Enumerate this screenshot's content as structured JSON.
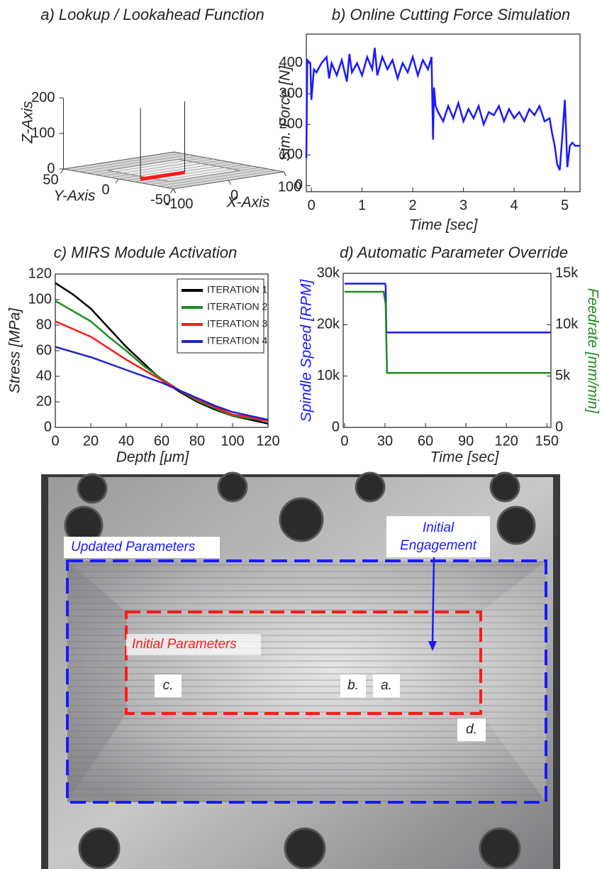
{
  "chart_data": [
    {
      "type": "surface3d",
      "title": "a) Lookup / Lookahead Function",
      "xlabel": "X-Axis",
      "ylabel": "Y-Axis",
      "zlabel": "Z-Axis",
      "xlim": [
        -100,
        100
      ],
      "ylim": [
        -50,
        50
      ],
      "zlim": [
        0,
        200
      ],
      "xticks": [
        -100,
        0,
        100
      ],
      "yticks": [
        -50,
        0,
        50
      ],
      "zticks": [
        0,
        100,
        200
      ],
      "toolpath": {
        "x": [
          -80,
          0
        ],
        "y": [
          -10,
          -10
        ],
        "z": [
          0,
          0
        ],
        "color": "#ff1a1a"
      }
    },
    {
      "type": "line",
      "title": "b) Online Cutting Force Simulation",
      "xlabel": "Time [sec]",
      "ylabel": "Sim. Force [N]",
      "xlim": [
        -0.1,
        5.3
      ],
      "ylim": [
        -20,
        495
      ],
      "xticks": [
        0,
        1,
        2,
        3,
        4,
        5
      ],
      "yticks": [
        0,
        100,
        200,
        300,
        400
      ],
      "color": "#1a1aff",
      "x": [
        -0.1,
        -0.08,
        -0.02,
        0.0,
        0.05,
        0.1,
        0.2,
        0.3,
        0.35,
        0.4,
        0.5,
        0.6,
        0.7,
        0.75,
        0.8,
        0.9,
        1.0,
        1.1,
        1.2,
        1.25,
        1.3,
        1.4,
        1.5,
        1.6,
        1.7,
        1.8,
        1.9,
        2.0,
        2.1,
        2.2,
        2.3,
        2.37,
        2.4,
        2.42,
        2.45,
        2.5,
        2.6,
        2.7,
        2.8,
        2.9,
        3.0,
        3.1,
        3.2,
        3.3,
        3.4,
        3.5,
        3.6,
        3.7,
        3.8,
        3.9,
        4.0,
        4.1,
        4.2,
        4.3,
        4.4,
        4.5,
        4.6,
        4.7,
        4.75,
        4.8,
        4.85,
        4.9,
        4.95,
        5.0,
        5.02,
        5.05,
        5.1,
        5.15,
        5.2,
        5.3
      ],
      "values": [
        90,
        410,
        400,
        280,
        380,
        370,
        400,
        420,
        350,
        400,
        360,
        410,
        340,
        430,
        370,
        400,
        360,
        420,
        380,
        450,
        360,
        420,
        380,
        410,
        350,
        400,
        370,
        420,
        360,
        410,
        380,
        420,
        150,
        320,
        260,
        240,
        210,
        260,
        220,
        270,
        210,
        250,
        220,
        260,
        200,
        240,
        230,
        260,
        210,
        250,
        220,
        240,
        210,
        250,
        230,
        260,
        210,
        220,
        170,
        130,
        70,
        50,
        160,
        280,
        200,
        60,
        130,
        140,
        130,
        130
      ]
    },
    {
      "type": "line",
      "title": "c) MIRS Module Activation",
      "xlabel": "Depth [μm]",
      "ylabel": "Stress [MPa]",
      "xlim": [
        0,
        120
      ],
      "ylim": [
        0,
        120
      ],
      "xticks": [
        0,
        20,
        40,
        60,
        80,
        100,
        120
      ],
      "yticks": [
        0,
        20,
        40,
        60,
        80,
        100,
        120
      ],
      "legend": "upper right",
      "x": [
        0,
        10,
        20,
        30,
        40,
        50,
        60,
        70,
        80,
        90,
        100,
        110,
        120
      ],
      "series": [
        {
          "name": "ITERATION 1",
          "color": "#000000",
          "values": [
            113,
            104,
            93,
            78,
            63,
            50,
            37,
            28,
            20,
            14,
            9,
            6,
            3
          ]
        },
        {
          "name": "ITERATION 2",
          "color": "#1e8c1e",
          "values": [
            99,
            91,
            83,
            71,
            60,
            48,
            38,
            29,
            21,
            15,
            9,
            7,
            5
          ]
        },
        {
          "name": "ITERATION 3",
          "color": "#ff1a1a",
          "values": [
            83,
            77,
            71,
            62,
            53,
            45,
            37,
            29,
            22,
            16,
            10,
            8,
            5
          ]
        },
        {
          "name": "ITERATION 4",
          "color": "#2020d0",
          "values": [
            63,
            59,
            55,
            50,
            45,
            40,
            35,
            29,
            23,
            17,
            12,
            9,
            6
          ]
        }
      ]
    },
    {
      "type": "line",
      "title": "d) Automatic Parameter Override",
      "xlabel": "Time [sec]",
      "ylabel": "Spindle Speed [RPM]",
      "y2label": "Feedrate [mm/min]",
      "xlim": [
        -1,
        153
      ],
      "ylim": [
        0,
        30000
      ],
      "y2lim": [
        0,
        15000
      ],
      "xticks": [
        0,
        30,
        60,
        90,
        120,
        150
      ],
      "yticks": [
        0,
        {
          "value": 10000,
          "label": "10k"
        },
        {
          "value": 20000,
          "label": "20k"
        },
        {
          "value": 30000,
          "label": "30k"
        }
      ],
      "y2ticks": [
        0,
        {
          "value": 5000,
          "label": "5k"
        },
        {
          "value": 10000,
          "label": "10k"
        },
        {
          "value": 15000,
          "label": "15k"
        }
      ],
      "series": [
        {
          "color": "#1a1aff",
          "x": [
            0,
            30,
            30.5,
            31,
            153
          ],
          "values": [
            28000,
            28000,
            27500,
            18500,
            18500
          ]
        },
        {
          "color": "#1e8c1e",
          "axis": "y2",
          "x": [
            0,
            29,
            30.5,
            31.5,
            153
          ],
          "values": [
            13200,
            13200,
            12000,
            5300,
            5300
          ]
        }
      ]
    }
  ],
  "photo": {
    "labels": {
      "updated": "Updated Parameters",
      "initial": "Initial Parameters",
      "engagement": [
        "Initial",
        "Engagement"
      ],
      "a": "a.",
      "b": "b.",
      "c": "c.",
      "d": "d."
    }
  }
}
